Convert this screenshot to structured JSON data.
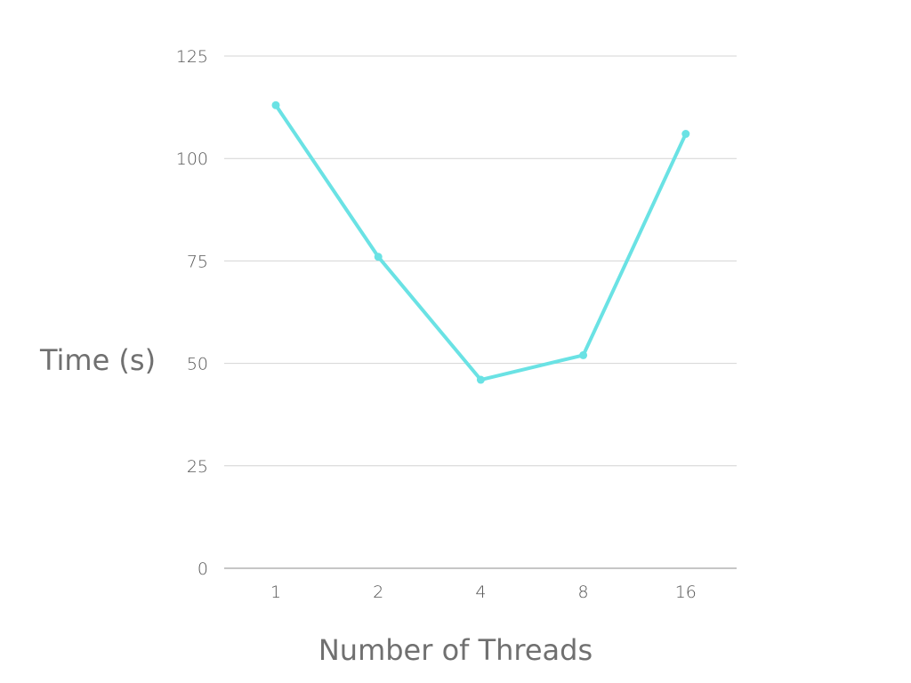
{
  "chart_data": {
    "type": "line",
    "title": "",
    "xlabel": "Number of Threads",
    "ylabel": "Time (s)",
    "categories": [
      "1",
      "2",
      "4",
      "8",
      "16"
    ],
    "series": [
      {
        "values": [
          113,
          76,
          46,
          52,
          106
        ]
      }
    ],
    "ylim": [
      0,
      125
    ],
    "yticks": [
      0,
      25,
      50,
      75,
      100,
      125
    ],
    "grid": true,
    "legend": "none",
    "colors": {
      "series": "#6ae2e4",
      "grid": "#d4d4d4",
      "axis": "#8c8c8c"
    }
  }
}
